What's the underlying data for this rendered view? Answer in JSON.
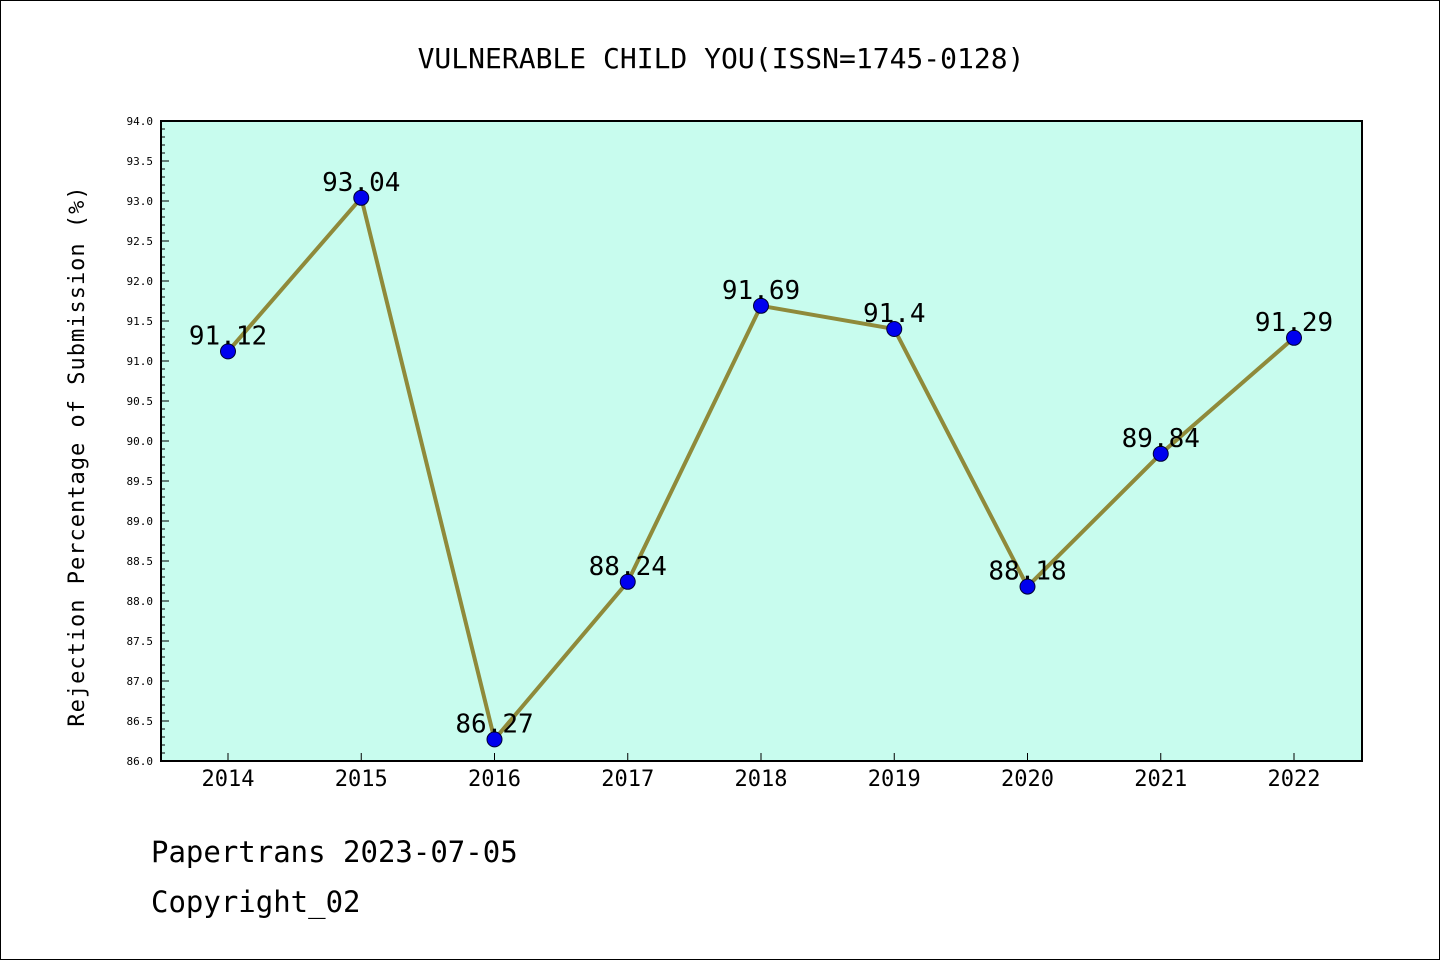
{
  "chart_data": {
    "type": "line",
    "title": "VULNERABLE CHILD YOU(ISSN=1745-0128)",
    "ylabel": "Rejection Percentage of Submission (%)",
    "xlabel": "",
    "categories": [
      "2014",
      "2015",
      "2016",
      "2017",
      "2018",
      "2019",
      "2020",
      "2021",
      "2022"
    ],
    "values": [
      91.12,
      93.04,
      86.27,
      88.24,
      91.69,
      91.4,
      88.18,
      89.84,
      91.29
    ],
    "data_labels": [
      "91.12",
      "93.04",
      "86.27",
      "88.24",
      "91.69",
      "91.4",
      "88.18",
      "89.84",
      "91.29"
    ],
    "ylim": [
      86.0,
      94.0
    ],
    "ytick_step": 0.5,
    "ytick_labels": [
      "86.0",
      "86.5",
      "87.0",
      "87.5",
      "88.0",
      "88.5",
      "89.0",
      "89.5",
      "90.0",
      "90.5",
      "91.0",
      "91.5",
      "92.0",
      "92.5",
      "93.0",
      "93.5",
      "94.0"
    ],
    "grid": false,
    "colors": {
      "plot_background": "#c8fcee",
      "line": "#8f8a3a",
      "marker": "#0000ee"
    }
  },
  "footer": {
    "line1": "Papertrans 2023-07-05",
    "line2": "Copyright_02"
  }
}
